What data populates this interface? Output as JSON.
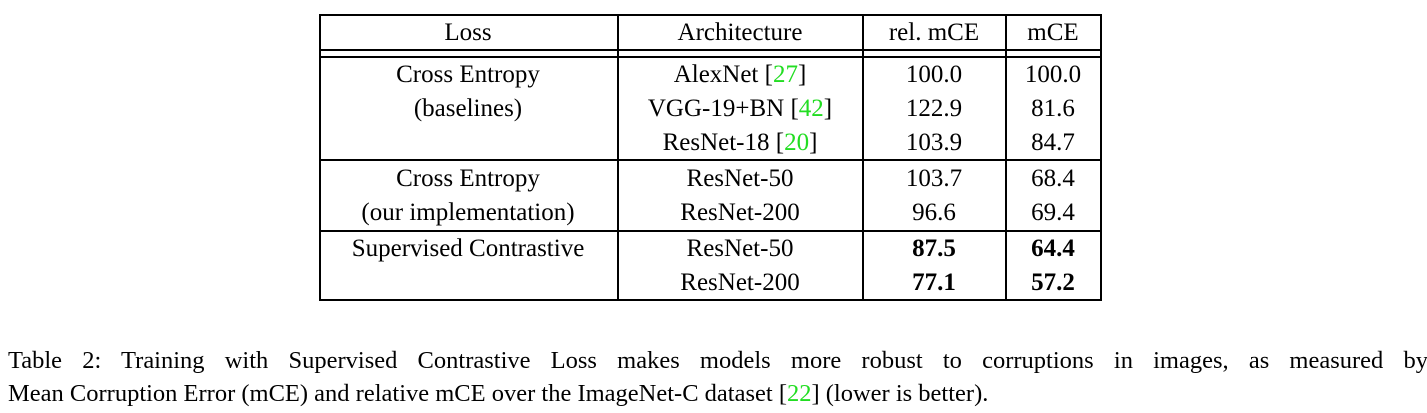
{
  "table": {
    "headers": {
      "loss": "Loss",
      "architecture": "Architecture",
      "rel_mce": "rel. mCE",
      "mce": "mCE"
    },
    "groups": [
      {
        "loss_lines": [
          "Cross Entropy",
          "(baselines)"
        ],
        "rows": [
          {
            "arch": "AlexNet",
            "cite": "27",
            "rel_mce": "100.0",
            "mce": "100.0",
            "bold": false
          },
          {
            "arch": "VGG-19+BN",
            "cite": "42",
            "rel_mce": "122.9",
            "mce": "81.6",
            "bold": false
          },
          {
            "arch": "ResNet-18",
            "cite": "20",
            "rel_mce": "103.9",
            "mce": "84.7",
            "bold": false
          }
        ]
      },
      {
        "loss_lines": [
          "Cross Entropy",
          "(our implementation)"
        ],
        "rows": [
          {
            "arch": "ResNet-50",
            "rel_mce": "103.7",
            "mce": "68.4",
            "bold": false
          },
          {
            "arch": "ResNet-200",
            "rel_mce": "96.6",
            "mce": "69.4",
            "bold": false
          }
        ]
      },
      {
        "loss_lines": [
          "Supervised Contrastive"
        ],
        "rows": [
          {
            "arch": "ResNet-50",
            "rel_mce": "87.5",
            "mce": "64.4",
            "bold": true
          },
          {
            "arch": "ResNet-200",
            "rel_mce": "77.1",
            "mce": "57.2",
            "bold": true
          }
        ]
      }
    ]
  },
  "caption": {
    "line1": "Table 2: Training with Supervised Contrastive Loss makes models more robust to corruptions in images, as measured by",
    "line2_before": "Mean Corruption Error (mCE) and relative mCE over the ImageNet-C dataset [",
    "line2_cite": "22",
    "line2_after": "] (lower is better)."
  },
  "colors": {
    "citation_link": "#22dd22",
    "text": "#000000",
    "rules": "#000000"
  }
}
